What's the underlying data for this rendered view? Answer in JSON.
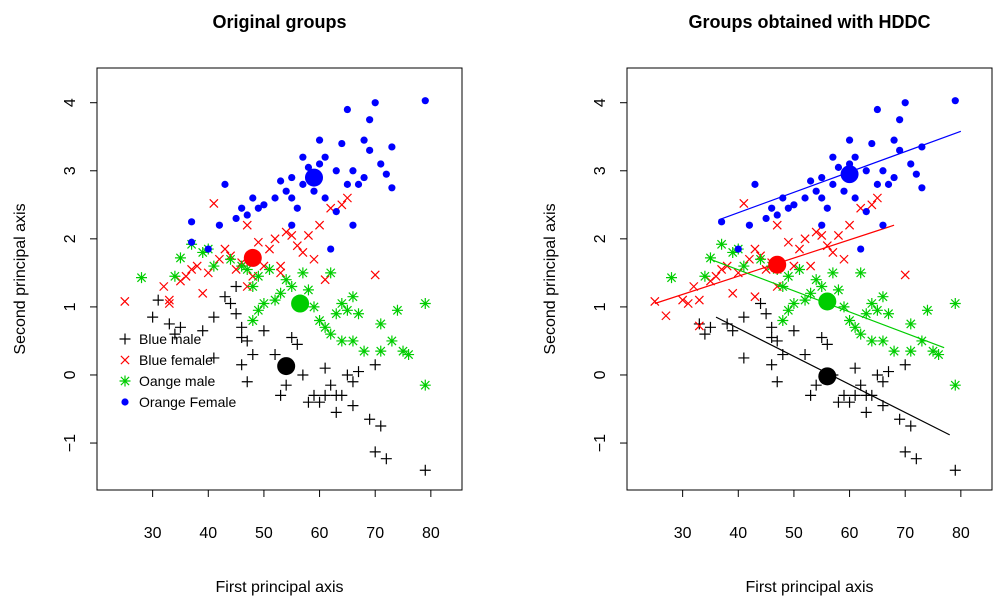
{
  "chart_data": [
    {
      "type": "scatter",
      "title": "Original groups",
      "x_label": "First principal axis",
      "y_label": "Second principal axis",
      "xlim": [
        20,
        85.6
      ],
      "ylim": [
        -1.69,
        4.51
      ],
      "xticks": [
        30,
        40,
        50,
        60,
        70,
        80
      ],
      "yticks": [
        {
          "value": -1,
          "label": "−1"
        },
        0,
        1,
        2,
        3,
        4
      ],
      "legend": "bottomleft",
      "series": [
        {
          "name": "Blue male",
          "color": "#000000",
          "marker": "plus",
          "x": [
            30,
            31,
            33,
            34,
            35,
            39,
            41,
            41,
            43,
            44,
            45,
            46,
            47,
            46,
            47,
            48,
            50,
            52,
            53,
            54,
            55,
            56,
            57,
            58,
            59,
            60,
            61,
            61,
            62,
            63,
            63,
            64,
            65,
            66,
            66,
            67,
            70,
            71,
            69,
            70,
            72,
            79,
            45,
            46
          ],
          "values": [
            0.85,
            1.1,
            0.75,
            0.6,
            0.7,
            0.65,
            0.85,
            0.25,
            1.15,
            1.05,
            0.9,
            0.55,
            0.5,
            0.15,
            -0.1,
            0.3,
            0.65,
            0.3,
            -0.3,
            -0.15,
            0.55,
            0.45,
            0,
            -0.4,
            -0.3,
            -0.4,
            -0.3,
            0.1,
            -0.15,
            -0.55,
            -0.3,
            -0.3,
            0,
            -0.1,
            -0.45,
            0.05,
            0.15,
            -0.75,
            -0.65,
            -1.13,
            -1.23,
            -1.4,
            1.3,
            0.7
          ],
          "center_x": 54,
          "center_y": 0.13
        },
        {
          "name": "Blue female",
          "color": "#ff0000",
          "marker": "cross",
          "x": [
            25,
            32,
            33,
            33,
            35,
            36,
            37,
            38,
            39,
            41,
            40,
            42,
            43,
            44,
            45,
            46,
            47,
            47,
            49,
            50,
            51,
            52,
            53,
            54,
            55,
            56,
            57,
            58,
            59,
            60,
            62,
            64,
            65,
            70,
            61,
            53,
            48
          ],
          "values": [
            1.08,
            1.3,
            1.1,
            1.05,
            1.38,
            1.45,
            1.55,
            1.6,
            1.2,
            2.52,
            1.5,
            1.7,
            1.85,
            1.75,
            1.55,
            1.65,
            2.2,
            1.3,
            1.95,
            1.6,
            1.85,
            2.0,
            1.6,
            2.1,
            2.05,
            1.9,
            1.8,
            2.05,
            1.7,
            2.2,
            2.45,
            2.5,
            2.6,
            1.47,
            1.4,
            1.5,
            1.45
          ],
          "center_x": 48,
          "center_y": 1.72
        },
        {
          "name": "Oange male",
          "color": "#00cd00",
          "marker": "asterisk",
          "x": [
            28,
            34,
            35,
            37,
            39,
            40,
            41,
            44,
            46,
            47,
            48,
            49,
            50,
            51,
            52,
            53,
            54,
            55,
            57,
            58,
            59,
            60,
            61,
            62,
            63,
            64,
            65,
            66,
            67,
            68,
            64,
            66,
            71,
            71,
            73,
            74,
            75,
            76,
            79,
            79,
            48,
            49,
            62
          ],
          "values": [
            1.43,
            1.45,
            1.72,
            1.92,
            1.8,
            1.85,
            1.6,
            1.7,
            1.6,
            1.55,
            1.3,
            1.45,
            1.05,
            1.55,
            1.1,
            1.2,
            1.4,
            1.3,
            1.5,
            1.25,
            1.0,
            0.8,
            0.7,
            1.5,
            0.9,
            1.05,
            0.95,
            1.15,
            0.9,
            0.35,
            0.5,
            0.5,
            0.75,
            0.35,
            0.5,
            0.95,
            0.35,
            0.3,
            1.05,
            -0.15,
            0.8,
            0.95,
            0.6
          ],
          "center_x": 56.5,
          "center_y": 1.05
        },
        {
          "name": "Orange Female",
          "color": "#0000ff",
          "marker": "dot",
          "x": [
            79,
            70,
            69,
            65,
            60,
            64,
            68,
            69,
            73,
            71,
            72,
            73,
            66,
            67,
            63,
            61,
            60,
            58,
            57,
            55,
            54,
            53,
            52,
            50,
            49,
            48,
            47,
            46,
            45,
            43,
            42,
            40,
            37,
            37,
            61,
            63,
            66,
            62,
            56,
            55,
            57,
            59,
            65,
            68,
            55
          ],
          "values": [
            4.03,
            4.0,
            3.75,
            3.9,
            3.45,
            3.4,
            3.45,
            3.3,
            3.35,
            3.1,
            2.95,
            2.75,
            3.0,
            2.8,
            3.0,
            3.2,
            3.1,
            3.05,
            3.2,
            2.9,
            2.7,
            2.85,
            2.6,
            2.5,
            2.45,
            2.6,
            2.35,
            2.45,
            2.3,
            2.8,
            2.2,
            1.85,
            2.25,
            1.95,
            2.6,
            2.4,
            2.2,
            1.85,
            2.45,
            2.2,
            2.8,
            2.7,
            2.8,
            2.9,
            2.6
          ],
          "center_x": 59,
          "center_y": 2.9
        }
      ]
    },
    {
      "type": "scatter",
      "title": "Groups obtained with HDDC",
      "x_label": "First principal axis",
      "y_label": "Second principal axis",
      "xlim": [
        20,
        85.6
      ],
      "ylim": [
        -1.69,
        4.51
      ],
      "xticks": [
        30,
        40,
        50,
        60,
        70,
        80
      ],
      "yticks": [
        {
          "value": -1,
          "label": "−1"
        },
        0,
        1,
        2,
        3,
        4
      ],
      "series": [
        {
          "color": "#000000",
          "marker": "plus",
          "x": [
            33,
            34,
            35,
            39,
            41,
            41,
            44,
            45,
            46,
            47,
            46,
            47,
            48,
            50,
            52,
            53,
            54,
            55,
            56,
            57,
            58,
            59,
            60,
            61,
            61,
            62,
            63,
            63,
            64,
            65,
            66,
            66,
            67,
            70,
            71,
            69,
            70,
            72,
            79,
            46,
            38
          ],
          "values": [
            0.75,
            0.6,
            0.7,
            0.65,
            0.85,
            0.25,
            1.05,
            0.9,
            0.55,
            0.5,
            0.15,
            -0.1,
            0.3,
            0.65,
            0.3,
            -0.3,
            -0.15,
            0.55,
            0.45,
            0,
            -0.4,
            -0.3,
            -0.4,
            -0.3,
            0.1,
            -0.15,
            -0.55,
            -0.3,
            -0.3,
            0,
            -0.1,
            -0.45,
            0.05,
            0.15,
            -0.75,
            -0.65,
            -1.13,
            -1.23,
            -1.4,
            0.7,
            0.75
          ],
          "center_x": 56,
          "center_y": -0.02,
          "fit_x": [
            36,
            78
          ],
          "fit_y": [
            0.85,
            -0.88
          ]
        },
        {
          "color": "#ff0000",
          "marker": "cross",
          "x": [
            25,
            27,
            32,
            33,
            33,
            35,
            36,
            37,
            38,
            39,
            41,
            40,
            42,
            43,
            44,
            45,
            46,
            47,
            47,
            49,
            50,
            51,
            52,
            53,
            54,
            55,
            56,
            57,
            58,
            59,
            60,
            62,
            64,
            65,
            70,
            30,
            31,
            43
          ],
          "values": [
            1.08,
            0.87,
            1.3,
            1.1,
            0.72,
            1.38,
            1.45,
            1.55,
            1.6,
            1.2,
            2.52,
            1.5,
            1.7,
            1.85,
            1.75,
            1.55,
            1.65,
            2.2,
            1.3,
            1.95,
            1.6,
            1.85,
            2.0,
            1.6,
            2.1,
            2.05,
            1.9,
            1.8,
            2.05,
            1.7,
            2.2,
            2.45,
            2.5,
            2.6,
            1.47,
            1.1,
            1.05,
            1.15
          ],
          "center_x": 47,
          "center_y": 1.62,
          "fit_x": [
            25,
            68
          ],
          "fit_y": [
            1.05,
            2.2
          ]
        },
        {
          "color": "#00cd00",
          "marker": "asterisk",
          "x": [
            28,
            34,
            35,
            37,
            39,
            40,
            41,
            44,
            46,
            47,
            48,
            49,
            50,
            51,
            52,
            53,
            54,
            55,
            57,
            58,
            59,
            60,
            61,
            62,
            63,
            64,
            65,
            66,
            67,
            68,
            64,
            66,
            71,
            71,
            73,
            74,
            75,
            76,
            79,
            79,
            48,
            49,
            62
          ],
          "values": [
            1.43,
            1.45,
            1.72,
            1.92,
            1.8,
            1.85,
            1.6,
            1.7,
            1.6,
            1.55,
            1.3,
            1.45,
            1.05,
            1.55,
            1.1,
            1.2,
            1.4,
            1.3,
            1.5,
            1.25,
            1.0,
            0.8,
            0.7,
            1.5,
            0.9,
            1.05,
            0.95,
            1.15,
            0.9,
            0.35,
            0.5,
            0.5,
            0.75,
            0.35,
            0.5,
            0.95,
            0.35,
            0.3,
            1.05,
            -0.15,
            0.8,
            0.95,
            0.6
          ],
          "center_x": 56,
          "center_y": 1.08,
          "fit_x": [
            35,
            77
          ],
          "fit_y": [
            1.7,
            0.4
          ]
        },
        {
          "color": "#0000ff",
          "marker": "dot",
          "x": [
            79,
            70,
            69,
            65,
            60,
            64,
            68,
            69,
            73,
            71,
            72,
            73,
            66,
            67,
            63,
            61,
            60,
            58,
            57,
            55,
            54,
            53,
            52,
            50,
            49,
            48,
            47,
            46,
            45,
            43,
            42,
            40,
            37,
            61,
            63,
            66,
            62,
            56,
            55,
            57,
            59,
            65,
            68,
            55
          ],
          "values": [
            4.03,
            4.0,
            3.75,
            3.9,
            3.45,
            3.4,
            3.45,
            3.3,
            3.35,
            3.1,
            2.95,
            2.75,
            3.0,
            2.8,
            3.0,
            3.2,
            3.1,
            3.05,
            3.2,
            2.9,
            2.7,
            2.85,
            2.6,
            2.5,
            2.45,
            2.6,
            2.35,
            2.45,
            2.3,
            2.8,
            2.2,
            1.85,
            2.25,
            2.6,
            2.4,
            2.2,
            1.85,
            2.45,
            2.2,
            2.8,
            2.7,
            2.8,
            2.9,
            2.6
          ],
          "center_x": 60,
          "center_y": 2.95,
          "fit_x": [
            36.5,
            80
          ],
          "fit_y": [
            2.28,
            3.58
          ]
        }
      ]
    }
  ]
}
